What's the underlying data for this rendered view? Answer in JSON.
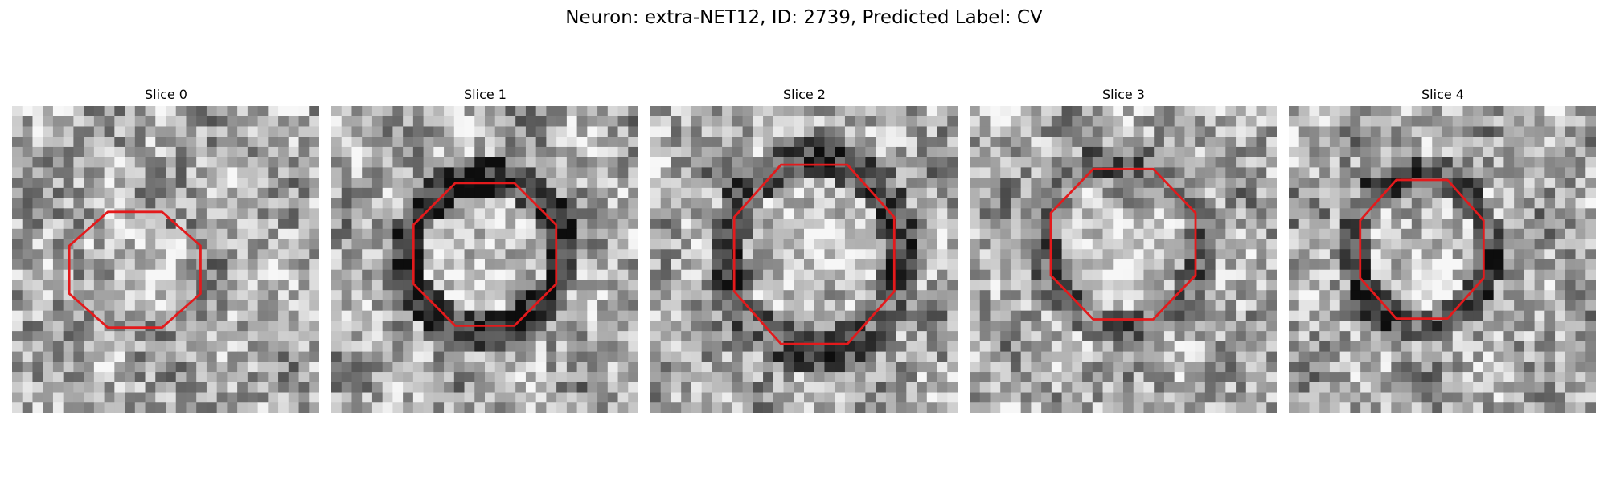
{
  "figure": {
    "title": "Neuron: extra-NET12, ID: 2739, Predicted Label: CV",
    "contour_color": "#e31a1c",
    "colormap": "grayscale",
    "panels": [
      {
        "title": "Slice 0",
        "noise_seed": 1
      },
      {
        "title": "Slice 1",
        "noise_seed": 2
      },
      {
        "title": "Slice 2",
        "noise_seed": 3
      },
      {
        "title": "Slice 3",
        "noise_seed": 4
      },
      {
        "title": "Slice 4",
        "noise_seed": 5
      }
    ]
  }
}
